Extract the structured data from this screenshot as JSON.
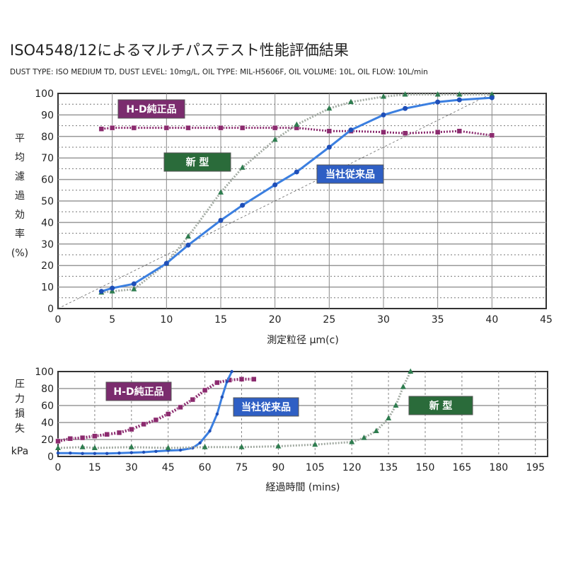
{
  "title": "ISO4548/12によるマルチパステスト性能評価結果",
  "subtitle": "DUST TYPE: ISO MEDIUM TD,  DUST LEVEL: 10mg/L,  OIL TYPE: MIL-H5606F,   OIL VOLUME: 10L,  OIL FLOW: 10L/min",
  "colors": {
    "hd": "#8b2a6e",
    "conventional": "#3b7fe0",
    "conventional_marker": "#1f4fb8",
    "new": "#2e7d4f",
    "new_line": "#a3aba3"
  },
  "chart_data": [
    {
      "type": "line",
      "ylabel": [
        "平",
        "均",
        "濾",
        "過",
        "効",
        "率",
        "(%)"
      ],
      "xlabel": "測定粒径  μm(c)",
      "xlim": [
        0,
        45
      ],
      "ylim": [
        0,
        100
      ],
      "xticks": [
        0,
        5,
        10,
        15,
        20,
        25,
        30,
        35,
        40,
        45
      ],
      "yticks": [
        0,
        10,
        20,
        30,
        40,
        50,
        60,
        70,
        80,
        90,
        100
      ],
      "grid": true,
      "series": [
        {
          "name": "H-D純正品",
          "marker": "square",
          "x": [
            4,
            5,
            7,
            10,
            12,
            15,
            17,
            20,
            22,
            25,
            27,
            30,
            32,
            35,
            37,
            40
          ],
          "y": [
            83.5,
            84,
            84,
            84,
            84,
            84,
            84,
            84,
            84,
            82.5,
            82.5,
            82,
            81.5,
            82,
            82.5,
            80.5
          ]
        },
        {
          "name": "新 型",
          "marker": "triangle",
          "x": [
            4,
            5,
            7,
            10,
            12,
            15,
            17,
            20,
            22,
            25,
            27,
            30,
            32,
            35,
            37,
            40
          ],
          "y": [
            7.5,
            8,
            9,
            21,
            33.5,
            54,
            65.5,
            78.5,
            85.5,
            93,
            96,
            98.5,
            99.5,
            99.5,
            99.5,
            99.5
          ]
        },
        {
          "name": "当社従来品",
          "marker": "circle",
          "x": [
            4,
            5,
            7,
            10,
            12,
            15,
            17,
            20,
            22,
            25,
            27,
            30,
            32,
            35,
            37,
            40
          ],
          "y": [
            8,
            9.5,
            11.5,
            21,
            29.5,
            41,
            48,
            57.5,
            63.5,
            75,
            83,
            90,
            93,
            96,
            97,
            98
          ]
        }
      ],
      "reference_line": {
        "x": [
          0,
          40
        ],
        "y": [
          0,
          100
        ]
      }
    },
    {
      "type": "line",
      "ylabel": [
        "圧",
        "力",
        "損",
        "失"
      ],
      "yunit": "kPa",
      "xlabel": "経過時間 (mins)",
      "xlim": [
        0,
        200
      ],
      "ylim": [
        0,
        100
      ],
      "xticks": [
        0,
        15,
        30,
        45,
        60,
        75,
        90,
        105,
        120,
        135,
        150,
        165,
        180,
        195
      ],
      "yticks": [
        0,
        20,
        40,
        60,
        80,
        100
      ],
      "grid": true,
      "series": [
        {
          "name": "H-D純正品",
          "marker": "square",
          "x": [
            0,
            5,
            10,
            15,
            20,
            25,
            30,
            35,
            40,
            45,
            50,
            55,
            60,
            65,
            70,
            75,
            80
          ],
          "y": [
            18,
            21,
            22,
            24,
            26,
            28,
            32,
            38,
            43,
            50,
            58,
            67,
            78,
            87,
            90,
            91,
            91
          ]
        },
        {
          "name": "当社従来品",
          "marker": "circle",
          "x": [
            0,
            5,
            10,
            15,
            20,
            25,
            30,
            35,
            40,
            45,
            50,
            55,
            58,
            62,
            65,
            67,
            69,
            71
          ],
          "y": [
            4,
            4,
            3.5,
            3.5,
            3.5,
            4,
            4.5,
            5,
            6,
            7,
            7.5,
            10,
            16,
            30,
            50,
            70,
            88,
            100
          ]
        },
        {
          "name": "新 型",
          "marker": "triangle",
          "x": [
            0,
            10,
            15,
            30,
            45,
            60,
            75,
            90,
            105,
            120,
            125,
            130,
            135,
            138,
            141,
            144
          ],
          "y": [
            10,
            11,
            10,
            11,
            10,
            11,
            11,
            12,
            14,
            17,
            22,
            30,
            45,
            60,
            82,
            100
          ]
        }
      ]
    }
  ]
}
